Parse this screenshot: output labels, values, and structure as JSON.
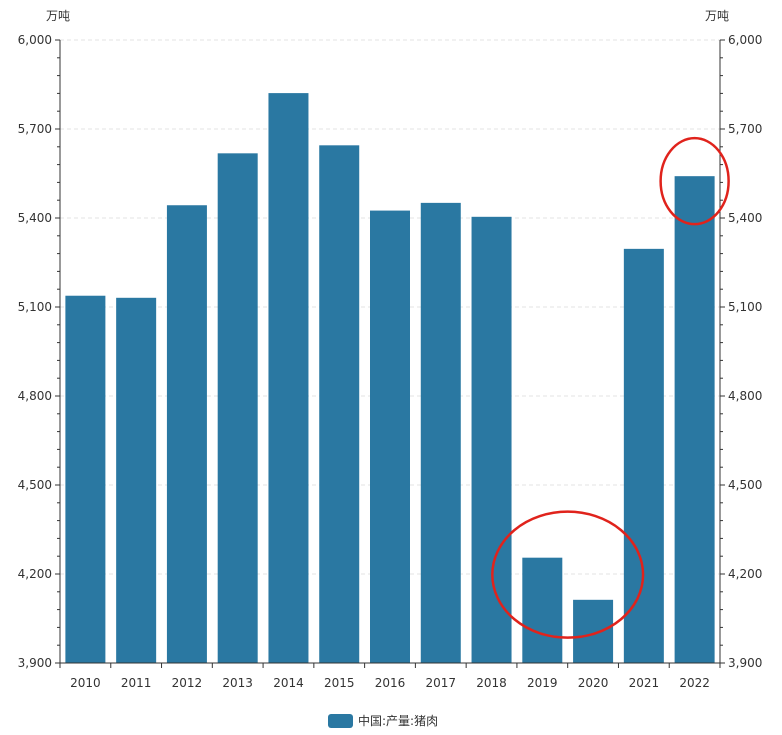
{
  "chart_data": {
    "type": "bar",
    "categories": [
      "2010",
      "2011",
      "2012",
      "2013",
      "2014",
      "2015",
      "2016",
      "2017",
      "2018",
      "2019",
      "2020",
      "2021",
      "2022"
    ],
    "series": [
      {
        "name": "中国:产量:猪肉",
        "values": [
          5138,
          5131,
          5443,
          5618,
          5821,
          5645,
          5425,
          5451,
          5404,
          4255,
          4113,
          5296,
          5541
        ],
        "color": "#2a78a2"
      }
    ],
    "y_unit_left": "万吨",
    "y_unit_right": "万吨",
    "ylim": [
      3900,
      6000
    ],
    "yticks": [
      3900,
      4200,
      4500,
      4800,
      5100,
      5400,
      5700,
      6000
    ],
    "ytick_labels": [
      "3,900",
      "4,200",
      "4,500",
      "4,800",
      "5,100",
      "5,400",
      "5,700",
      "6,000"
    ],
    "grid": true,
    "legend_position": "bottom",
    "annotations": [
      {
        "type": "ellipse",
        "color": "#e0231c",
        "around": [
          "2019",
          "2020"
        ]
      },
      {
        "type": "ellipse",
        "color": "#e0231c",
        "around": [
          "2022"
        ]
      }
    ]
  }
}
